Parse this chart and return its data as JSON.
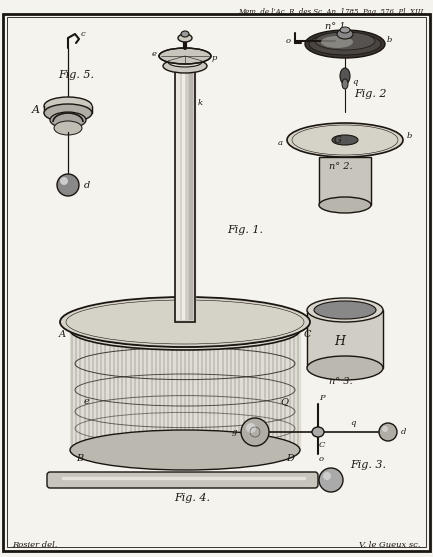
{
  "title_text": "Mem. de l’Ac. R. des Sc. An. 1785. Pag. 576. Pl. XIII.",
  "bottom_left_text": "Rosier del.",
  "bottom_right_text": "V. le Gueux sc.",
  "bg": "#f5f3ee",
  "ink": "#1a1510",
  "fig1_label": "Fig. 1.",
  "fig2_label": "Fig. 2",
  "fig3_label": "Fig. 3.",
  "fig4_label": "Fig. 4.",
  "fig5_label": "Fig. 5.",
  "no1_label": "n° 1.",
  "no2_label": "n° 2.",
  "no3_label": "n° 3."
}
